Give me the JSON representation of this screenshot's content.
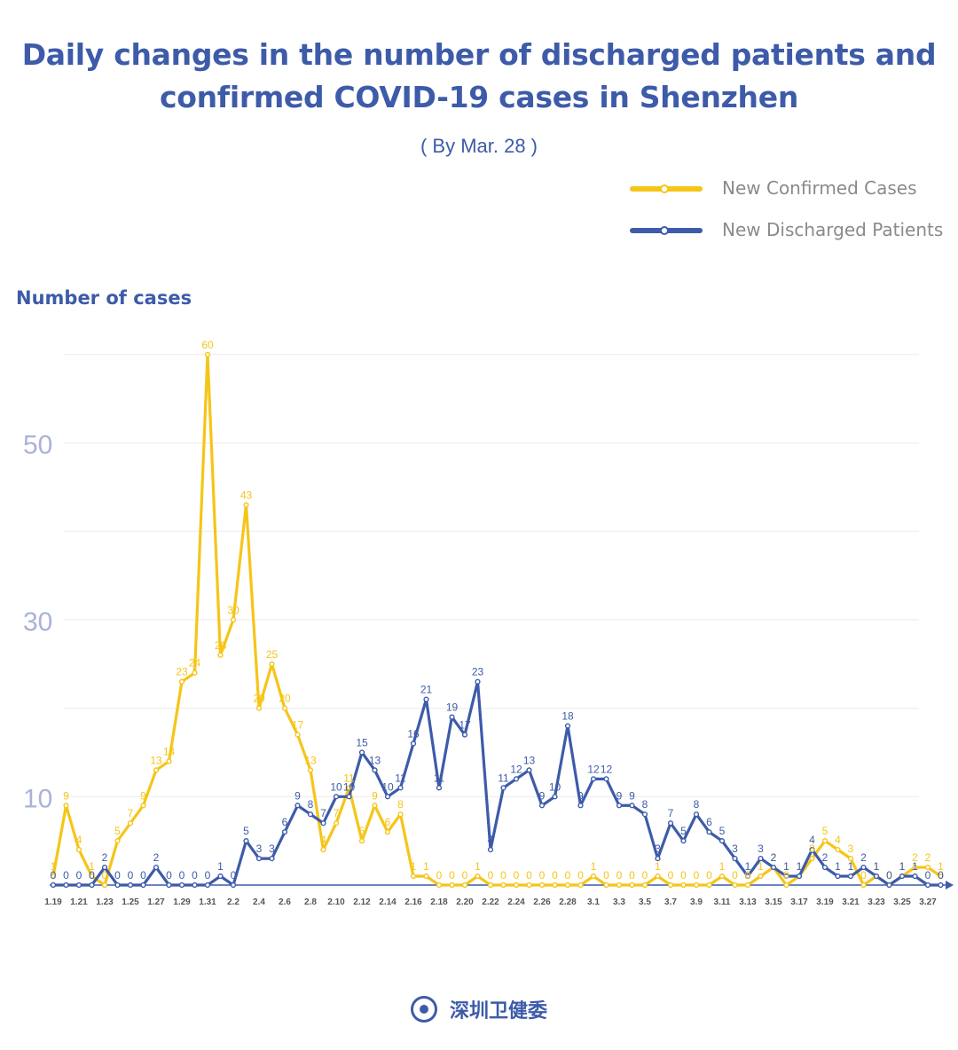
{
  "chart_data": {
    "type": "line",
    "title": "Daily changes in the number of discharged patients and confirmed COVID-19 cases in Shenzhen",
    "subtitle": "( By Mar. 28 )",
    "ylabel": "Number of cases",
    "xlabel": "",
    "ylim": [
      0,
      60
    ],
    "y_ticks": [
      10,
      30,
      50
    ],
    "y_tick_labels": [
      "10",
      "30",
      "50"
    ],
    "grid": true,
    "legend_position": "top-right",
    "categories": [
      "1.19",
      "1.20",
      "1.21",
      "1.22",
      "1.23",
      "1.24",
      "1.25",
      "1.26",
      "1.27",
      "1.28",
      "1.29",
      "1.30",
      "1.31",
      "2.1",
      "2.2",
      "2.3",
      "2.4",
      "2.5",
      "2.6",
      "2.7",
      "2.8",
      "2.9",
      "2.10",
      "2.11",
      "2.12",
      "2.13",
      "2.14",
      "2.15",
      "2.16",
      "2.17",
      "2.18",
      "2.19",
      "2.20",
      "2.21",
      "2.22",
      "2.23",
      "2.24",
      "2.25",
      "2.26",
      "2.27",
      "2.28",
      "2.29",
      "3.1",
      "3.2",
      "3.3",
      "3.4",
      "3.5",
      "3.6",
      "3.7",
      "3.8",
      "3.9",
      "3.10",
      "3.11",
      "3.12",
      "3.13",
      "3.14",
      "3.15",
      "3.16",
      "3.17",
      "3.18",
      "3.19",
      "3.20",
      "3.21",
      "3.22",
      "3.23",
      "3.24",
      "3.25",
      "3.26",
      "3.27",
      "3.28"
    ],
    "x_tick_labels": [
      "1.19",
      "1.21",
      "1.23",
      "1.25",
      "1.27",
      "1.29",
      "1.31",
      "2.2",
      "2.4",
      "2.6",
      "2.8",
      "2.10",
      "2.12",
      "2.14",
      "2.16",
      "2.18",
      "2.20",
      "2.22",
      "2.24",
      "2.26",
      "2.28",
      "3.1",
      "3.3",
      "3.5",
      "3.7",
      "3.9",
      "3.11",
      "3.13",
      "3.15",
      "3.17",
      "3.19",
      "3.21",
      "3.23",
      "3.25",
      "3.27"
    ],
    "series": [
      {
        "name": "New Confirmed Cases",
        "color": "#f5c518",
        "values": [
          1,
          9,
          4,
          1,
          0,
          5,
          7,
          9,
          13,
          14,
          23,
          24,
          60,
          26,
          30,
          43,
          20,
          25,
          20,
          17,
          13,
          4,
          7,
          11,
          5,
          9,
          6,
          8,
          1,
          1,
          0,
          0,
          0,
          1,
          0,
          0,
          0,
          0,
          0,
          0,
          0,
          0,
          1,
          0,
          0,
          0,
          0,
          1,
          0,
          0,
          0,
          0,
          1,
          0,
          0,
          1,
          2,
          0,
          1,
          3,
          5,
          4,
          3,
          0,
          1,
          0,
          1,
          2,
          2,
          1
        ]
      },
      {
        "name": "New Discharged Patients",
        "color": "#3d5ba9",
        "values": [
          0,
          0,
          0,
          0,
          2,
          0,
          0,
          0,
          2,
          0,
          0,
          0,
          0,
          1,
          0,
          5,
          3,
          3,
          6,
          9,
          8,
          7,
          10,
          10,
          15,
          13,
          10,
          11,
          16,
          21,
          11,
          19,
          17,
          23,
          4,
          11,
          12,
          13,
          9,
          10,
          18,
          9,
          12,
          12,
          9,
          9,
          8,
          3,
          7,
          5,
          8,
          6,
          5,
          3,
          1,
          3,
          2,
          1,
          1,
          4,
          2,
          1,
          1,
          2,
          1,
          0,
          1,
          1,
          0,
          0
        ]
      }
    ]
  },
  "legend": {
    "confirmed_label": "New Confirmed Cases",
    "discharged_label": "New Discharged Patients"
  },
  "footer": {
    "text": "深圳卫健委"
  }
}
